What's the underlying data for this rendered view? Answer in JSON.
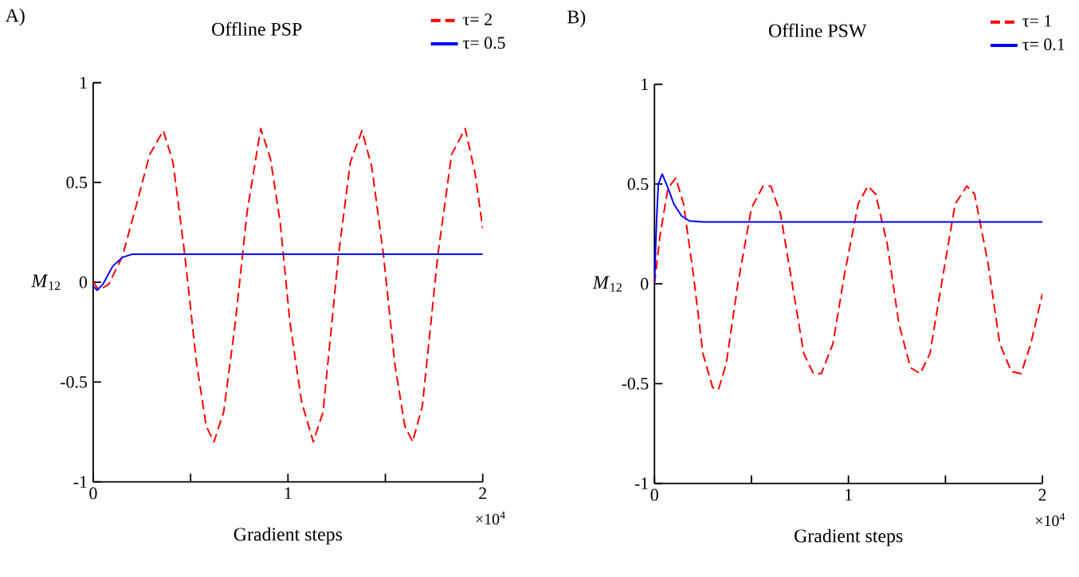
{
  "chart_data": [
    {
      "type": "line",
      "title": "Offline PSP",
      "xlabel": "Gradient steps",
      "ylabel": "*M*$_{12}$",
      "annotations": [
        "A)",
        "×10$^{4}$"
      ],
      "xlim": [
        0,
        2
      ],
      "ylim": [
        -1,
        1
      ],
      "xticks": [
        0,
        1,
        2
      ],
      "yticks": [
        -1,
        -0.5,
        0,
        0.5,
        1
      ],
      "legend": "top right",
      "grid": false,
      "series": [
        {
          "name": "τ= 2",
          "color": "#ff0000",
          "line_style": "dashed",
          "x": [
            0,
            0.03,
            0.08,
            0.15,
            0.22,
            0.29,
            0.36,
            0.41,
            0.47,
            0.53,
            0.58,
            0.62,
            0.67,
            0.73,
            0.79,
            0.86,
            0.91,
            0.96,
            1.01,
            1.07,
            1.13,
            1.18,
            1.26,
            1.32,
            1.38,
            1.43,
            1.49,
            1.55,
            1.6,
            1.64,
            1.69,
            1.77,
            1.84,
            1.91,
            1.96,
            2
          ],
          "values": [
            0,
            -0.04,
            -0.01,
            0.13,
            0.38,
            0.64,
            0.76,
            0.6,
            0.14,
            -0.4,
            -0.72,
            -0.8,
            -0.65,
            -0.2,
            0.35,
            0.77,
            0.62,
            0.3,
            -0.2,
            -0.6,
            -0.8,
            -0.65,
            0.14,
            0.6,
            0.76,
            0.58,
            0.14,
            -0.42,
            -0.72,
            -0.8,
            -0.62,
            0.14,
            0.64,
            0.77,
            0.55,
            0.27
          ]
        },
        {
          "name": "τ= 0.5",
          "color": "#0000ff",
          "line_style": "solid",
          "x": [
            0,
            0.02,
            0.05,
            0.1,
            0.15,
            0.2,
            0.3,
            2
          ],
          "values": [
            -0.02,
            -0.04,
            -0.01,
            0.08,
            0.125,
            0.14,
            0.14,
            0.14
          ]
        }
      ]
    },
    {
      "type": "line",
      "title": "Offline PSW",
      "xlabel": "Gradient steps",
      "ylabel": "*M*$_{12}$",
      "annotations": [
        "B)",
        "×10$^{4}$"
      ],
      "xlim": [
        0,
        2
      ],
      "ylim": [
        -1,
        1
      ],
      "xticks": [
        0,
        1,
        2
      ],
      "yticks": [
        -1,
        -0.5,
        0,
        0.5,
        1
      ],
      "legend": "top right",
      "grid": false,
      "series": [
        {
          "name": "τ= 1",
          "color": "#ff0000",
          "line_style": "dashed",
          "x": [
            0,
            0.03,
            0.07,
            0.11,
            0.15,
            0.2,
            0.25,
            0.3,
            0.33,
            0.37,
            0.43,
            0.5,
            0.56,
            0.6,
            0.65,
            0.71,
            0.77,
            0.82,
            0.86,
            0.92,
            0.98,
            1.05,
            1.1,
            1.14,
            1.2,
            1.26,
            1.32,
            1.37,
            1.42,
            1.48,
            1.55,
            1.61,
            1.65,
            1.72,
            1.78,
            1.84,
            1.89,
            1.94,
            2
          ],
          "values": [
            0,
            0.25,
            0.48,
            0.53,
            0.4,
            0.05,
            -0.35,
            -0.52,
            -0.53,
            -0.4,
            0,
            0.38,
            0.49,
            0.49,
            0.35,
            0,
            -0.35,
            -0.45,
            -0.45,
            -0.3,
            0.05,
            0.4,
            0.49,
            0.45,
            0.2,
            -0.2,
            -0.42,
            -0.45,
            -0.35,
            0,
            0.4,
            0.49,
            0.45,
            0.1,
            -0.3,
            -0.44,
            -0.45,
            -0.3,
            -0.05
          ]
        },
        {
          "name": "τ= 0.1",
          "color": "#0000ff",
          "line_style": "solid",
          "x": [
            0,
            0.01,
            0.02,
            0.04,
            0.07,
            0.1,
            0.14,
            0.18,
            0.25,
            2
          ],
          "values": [
            0,
            0.3,
            0.5,
            0.55,
            0.48,
            0.4,
            0.34,
            0.315,
            0.31,
            0.31
          ]
        }
      ]
    }
  ]
}
